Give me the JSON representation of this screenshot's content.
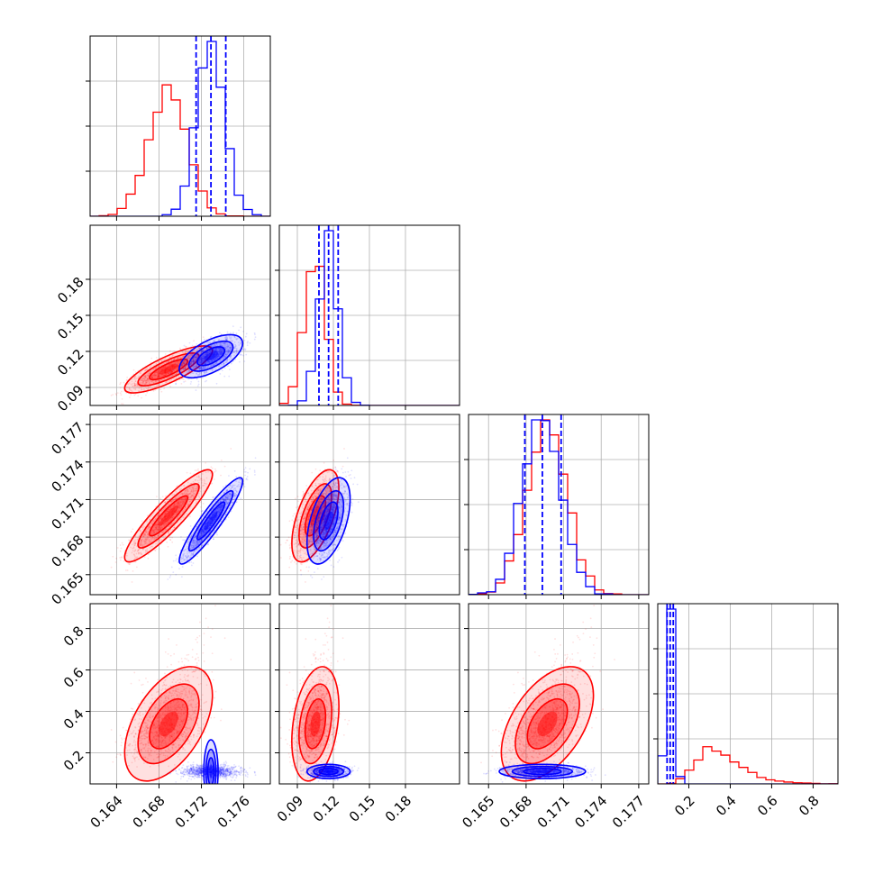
{
  "colors": {
    "series_a": "#ff0000",
    "series_b": "#0000ff",
    "grid": "#b0b0b0",
    "frame": "#000000"
  },
  "chart_data": {
    "type": "corner",
    "grid": true,
    "parameters": [
      {
        "range": [
          0.1615,
          0.1785
        ],
        "ticks": [
          0.164,
          0.168,
          0.172,
          0.176
        ],
        "tick_labels": [
          "0.164",
          "0.168",
          "0.172",
          "0.176"
        ]
      },
      {
        "range": [
          0.075,
          0.225
        ],
        "ticks": [
          0.09,
          0.12,
          0.15,
          0.18
        ],
        "tick_labels": [
          "0.09",
          "0.12",
          "0.15",
          "0.18"
        ]
      },
      {
        "range": [
          0.1634,
          0.1778
        ],
        "ticks": [
          0.165,
          0.168,
          0.171,
          0.174,
          0.177
        ],
        "tick_labels": [
          "0.165",
          "0.168",
          "0.171",
          "0.174",
          "0.177"
        ]
      },
      {
        "range": [
          0.05,
          0.92
        ],
        "ticks": [
          0.2,
          0.4,
          0.6,
          0.8
        ],
        "tick_labels": [
          "0.2",
          "0.4",
          "0.6",
          "0.8"
        ]
      }
    ],
    "series": [
      {
        "color": "#ff0000",
        "mean": [
          0.1689,
          0.105,
          0.1697,
          0.36
        ],
        "sd": [
          0.0018,
          0.0085,
          0.0016,
          0.13
        ],
        "corr": [
          [
            1,
            0.8,
            0.9,
            0.5
          ],
          [
            0.8,
            1,
            0.6,
            0.3
          ],
          [
            0.9,
            0.6,
            1,
            0.5
          ],
          [
            0.5,
            0.3,
            0.5,
            1
          ]
        ],
        "quantile_lines": false
      },
      {
        "color": "#0000ff",
        "mean": [
          0.1729,
          0.116,
          0.1693,
          0.11
        ],
        "sd": [
          0.0013,
          0.0078,
          0.0015,
          0.015
        ],
        "corr": [
          [
            1,
            0.6,
            0.92,
            0.0
          ],
          [
            0.6,
            1,
            0.5,
            0.0
          ],
          [
            0.92,
            0.5,
            1,
            0.0
          ],
          [
            0.0,
            0.0,
            0.0,
            1
          ]
        ],
        "quantile_lines": true,
        "quantiles": [
          [
            0.1715,
            0.1729,
            0.1743
          ],
          [
            0.108,
            0.116,
            0.124
          ],
          [
            0.1679,
            0.1693,
            0.1708
          ],
          [
            0.095,
            0.11,
            0.125
          ]
        ]
      }
    ]
  }
}
